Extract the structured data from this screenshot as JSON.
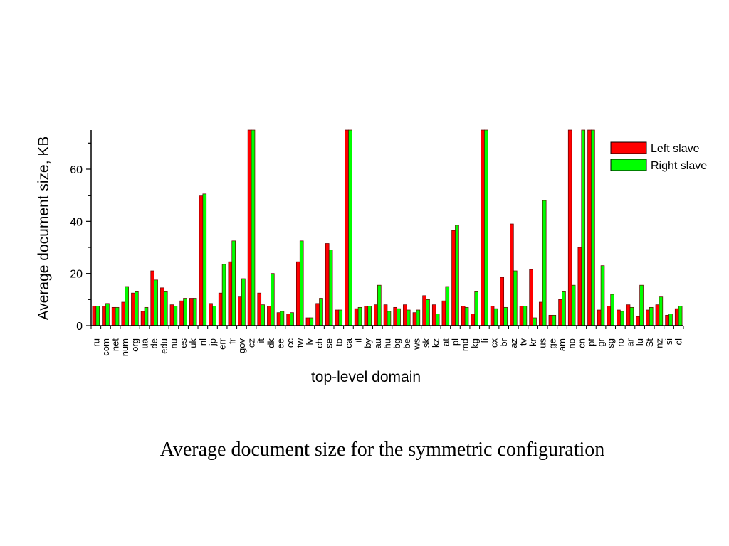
{
  "caption": "Average document size for the symmetric configuration",
  "colors": {
    "left": "#ff0000",
    "right": "#00ff00",
    "stroke": "#600000"
  },
  "chart_data": {
    "type": "bar",
    "title": "",
    "xlabel": "top-level domain",
    "ylabel": "Average document size, KB",
    "ylim": [
      0,
      75
    ],
    "yticks": [
      0,
      20,
      40,
      60
    ],
    "grid": false,
    "legend_position": "top-right",
    "categories": [
      "ru",
      "com",
      "net",
      "num",
      "org",
      "ua",
      "de",
      "edu",
      "nu",
      "es",
      "uk",
      "nl",
      "jp",
      "err",
      "fr",
      "gov",
      "cz",
      "it",
      "dk",
      "ee",
      "cc",
      "tw",
      "lv",
      "ch",
      "se",
      "to",
      "ca",
      "il",
      "by",
      "au",
      "hu",
      "bg",
      "be",
      "ws",
      "sk",
      "kz",
      "at",
      "pl",
      "md",
      "kg",
      "fi",
      "cx",
      "br",
      "az",
      "tv",
      "kr",
      "us",
      "ge",
      "am",
      "no",
      "cn",
      "pt",
      "gr",
      "sg",
      "ro",
      "ar",
      "lu",
      "St",
      "nz",
      "si",
      "cl"
    ],
    "series": [
      {
        "name": "Left slave",
        "values": [
          7.5,
          7.5,
          7,
          9,
          12.5,
          5.5,
          21,
          14.5,
          8,
          9.5,
          10.5,
          50,
          8.5,
          12.5,
          24.5,
          11,
          75,
          12.5,
          7.5,
          5,
          4.5,
          24.5,
          3,
          8.5,
          31.5,
          6,
          75,
          6.5,
          7.5,
          8,
          8,
          7,
          8,
          5,
          11.5,
          8,
          9.5,
          36.5,
          7.5,
          4.5,
          75,
          7.5,
          18.5,
          39,
          7.5,
          21.5,
          9,
          4,
          10,
          75,
          30,
          75,
          6,
          7.5,
          6,
          8,
          3.5,
          6,
          8,
          4,
          6.5
        ]
      },
      {
        "name": "Right slave",
        "values": [
          7.5,
          8.5,
          7,
          15,
          13,
          7,
          17.5,
          13,
          7.5,
          10.5,
          10.5,
          50.5,
          7.5,
          23.5,
          32.5,
          18,
          75,
          8,
          20,
          5.5,
          5,
          32.5,
          3,
          10.5,
          29,
          6,
          75,
          7,
          7.5,
          15.5,
          5.5,
          6.5,
          6,
          6,
          10,
          4.5,
          15,
          38.5,
          7,
          13,
          75,
          6.5,
          7,
          21,
          7.5,
          3,
          48,
          4,
          13,
          15.5,
          75,
          75,
          23,
          12,
          5.5,
          7,
          15.5,
          7,
          11,
          4.5,
          7.5
        ]
      }
    ]
  }
}
